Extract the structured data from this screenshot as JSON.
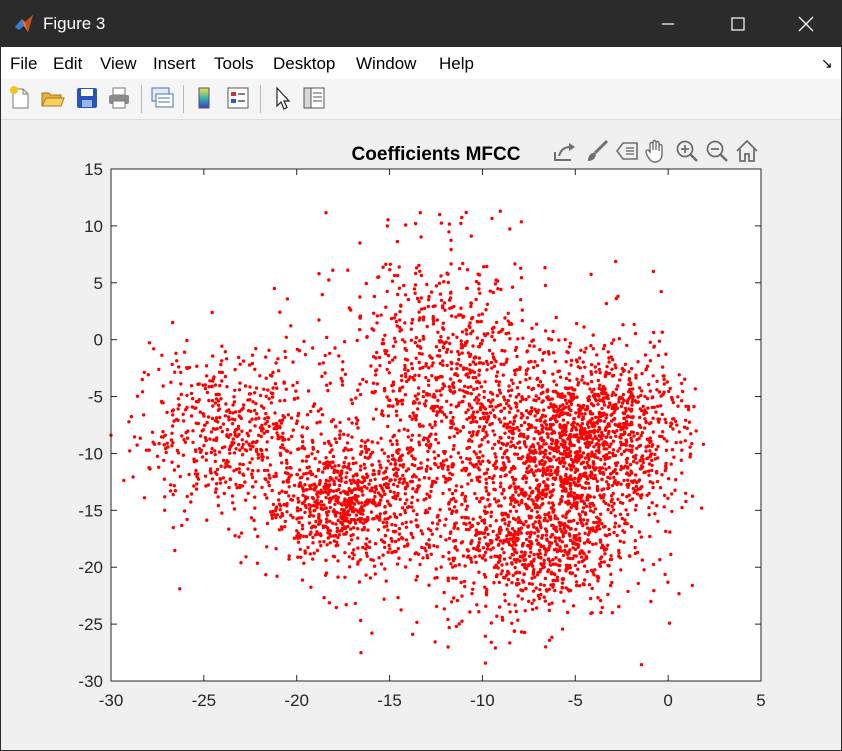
{
  "window": {
    "title": "Figure 3",
    "icon": "matlab-logo-icon",
    "controls": [
      "minimize-icon",
      "maximize-icon",
      "close-icon"
    ]
  },
  "menubar": {
    "items": [
      "File",
      "Edit",
      "View",
      "Insert",
      "Tools",
      "Desktop",
      "Window",
      "Help"
    ],
    "dock_icon": "dock-arrow-icon"
  },
  "toolbar": {
    "icons": [
      "new-figure-icon",
      "open-file-icon",
      "save-icon",
      "print-icon",
      "link-plot-icon",
      "insert-colorbar-icon",
      "insert-legend-icon",
      "edit-plot-icon",
      "property-inspector-icon"
    ]
  },
  "axes_toolbar": {
    "icons": [
      "export-icon",
      "brush-icon",
      "datatip-icon",
      "pan-icon",
      "zoom-in-icon",
      "zoom-out-icon",
      "home-icon"
    ]
  },
  "colors": {
    "marker": "#ff0000",
    "titlebar": "#2b2b2b",
    "axes_bg": "#ffffff",
    "figure_bg": "#f0f0f0"
  },
  "chart_data": {
    "type": "scatter",
    "title": "Coefficients MFCC",
    "xlabel": "",
    "ylabel": "",
    "xlim": [
      -30,
      5
    ],
    "ylim": [
      -30,
      15
    ],
    "xticks": [
      -30,
      -25,
      -20,
      -15,
      -10,
      -5,
      0,
      5
    ],
    "yticks": [
      15,
      10,
      5,
      0,
      -5,
      -10,
      -15,
      -20,
      -25,
      -30
    ],
    "grid": false,
    "legend": "none",
    "clusters": [
      {
        "cx": -23.5,
        "cy": -8.0,
        "sx": 2.6,
        "sy": 3.5,
        "n": 560
      },
      {
        "cx": -17.5,
        "cy": -14.5,
        "sx": 2.2,
        "sy": 2.6,
        "n": 720
      },
      {
        "cx": -12.0,
        "cy": -3.0,
        "sx": 2.8,
        "sy": 5.5,
        "n": 700
      },
      {
        "cx": -5.0,
        "cy": -9.0,
        "sx": 2.2,
        "sy": 3.5,
        "n": 1000
      },
      {
        "cx": -7.0,
        "cy": -18.0,
        "sx": 2.5,
        "sy": 3.2,
        "n": 700
      },
      {
        "cx": -10.5,
        "cy": -12.0,
        "sx": 4.0,
        "sy": 6.5,
        "n": 650
      },
      {
        "cx": -2.0,
        "cy": -8.0,
        "sx": 2.0,
        "sy": 4.5,
        "n": 330
      }
    ],
    "outlier_points": [
      {
        "x": -30.0,
        "y": -8.4
      },
      {
        "x": -26.3,
        "y": -21.9
      },
      {
        "x": -23.0,
        "y": -19.6
      },
      {
        "x": -21.2,
        "y": 4.5
      },
      {
        "x": -18.8,
        "y": 5.8
      },
      {
        "x": -16.6,
        "y": 8.5
      },
      {
        "x": -12.3,
        "y": 11.0
      },
      {
        "x": -11.4,
        "y": -25.2
      },
      {
        "x": -9.3,
        "y": -27.1
      },
      {
        "x": -6.6,
        "y": -27.0
      },
      {
        "x": 1.3,
        "y": -21.6
      },
      {
        "x": 1.8,
        "y": -14.8
      },
      {
        "x": 1.9,
        "y": -9.2
      },
      {
        "x": -28.2,
        "y": -13.9
      },
      {
        "x": -25.9,
        "y": -15.8
      },
      {
        "x": -3.0,
        "y": -24.0
      },
      {
        "x": -10.6,
        "y": 9.1
      },
      {
        "x": -13.6,
        "y": 10.2
      },
      {
        "x": -9.3,
        "y": 4.9
      },
      {
        "x": -26.5,
        "y": -1.2
      },
      {
        "x": -27.7,
        "y": -0.8
      }
    ]
  }
}
